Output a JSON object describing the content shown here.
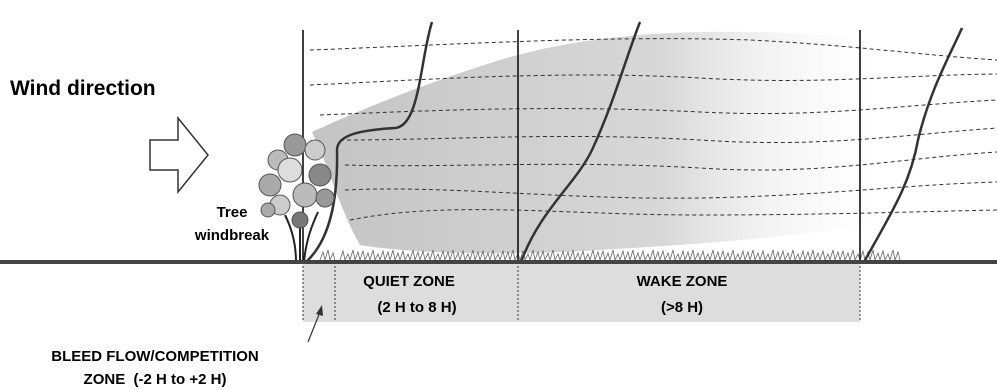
{
  "wind_label": "Wind direction",
  "tree_label": [
    "Tree",
    "windbreak"
  ],
  "zones": [
    {
      "name": "QUIET ZONE",
      "range": "(2 H to 8 H)"
    },
    {
      "name": "WAKE ZONE",
      "range": "(>8 H)"
    }
  ],
  "bleed_label": [
    "BLEED FLOW/COMPETITION",
    "ZONE  (-2 H to +2 H)"
  ]
}
